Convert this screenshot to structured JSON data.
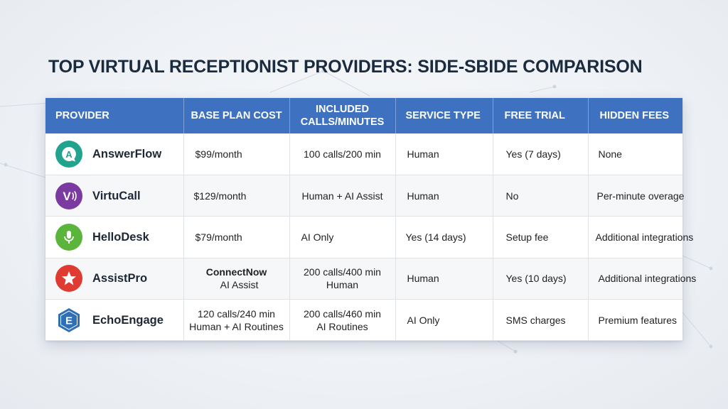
{
  "title": "TOP VIRTUAL RECEPTIONIST PROVIDERS: SIDE-SBIDE COMPARISON",
  "colors": {
    "header_bg": "#3e72c0",
    "answerflow": "#22a38e",
    "virtucall": "#7a3aa0",
    "hellodesk": "#5bb53c",
    "assistpro": "#e03b32",
    "echoengage": "#2f6fb6"
  },
  "table": {
    "headers": [
      [
        "PROVIDER"
      ],
      [
        "BASE PLAN COST"
      ],
      [
        "INCLUDED",
        "CALLS/MINUTES"
      ],
      [
        "SERVICE TYPE"
      ],
      [
        "FREE TRIAL"
      ],
      [
        "HIDDEN FEES"
      ]
    ],
    "rows": [
      {
        "provider": "AnswerFlow",
        "icon": "chat-a-icon",
        "base_plan_cost": [
          "$99/month"
        ],
        "included": [
          "100 calls/200 min"
        ],
        "service_type": [
          "Human"
        ],
        "free_trial": [
          "Yes (7 days)"
        ],
        "hidden_fees": [
          "None"
        ]
      },
      {
        "provider": "VirtuCall",
        "icon": "v-wave-icon",
        "base_plan_cost": [
          "$129/month"
        ],
        "included": [
          "Human + AI Assist"
        ],
        "service_type": [
          "Human"
        ],
        "free_trial": [
          "No"
        ],
        "hidden_fees": [
          "Per-minute overage"
        ]
      },
      {
        "provider": "HelloDesk",
        "icon": "microphone-icon",
        "base_plan_cost": [
          "$79/month"
        ],
        "included": [
          "AI Only"
        ],
        "service_type": [
          "Yes (14 days)"
        ],
        "free_trial": [
          "Setup fee"
        ],
        "hidden_fees": [
          "Additional integrations"
        ]
      },
      {
        "provider": "AssistPro",
        "icon": "star-icon",
        "base_plan_cost": [
          "ConnectNow",
          "AI Assist"
        ],
        "included": [
          "200 calls/400 min",
          "Human"
        ],
        "service_type": [
          "Human"
        ],
        "free_trial": [
          "Yes (10 days)"
        ],
        "hidden_fees": [
          "Additional integrations"
        ]
      },
      {
        "provider": "EchoEngage",
        "icon": "chip-e-icon",
        "base_plan_cost": [
          "120 calls/240 min",
          "Human + AI Routines"
        ],
        "included": [
          "200 calls/460 min",
          "AI Routines"
        ],
        "service_type": [
          "AI Only"
        ],
        "free_trial": [
          "SMS charges"
        ],
        "hidden_fees": [
          "Premium features"
        ]
      }
    ]
  }
}
